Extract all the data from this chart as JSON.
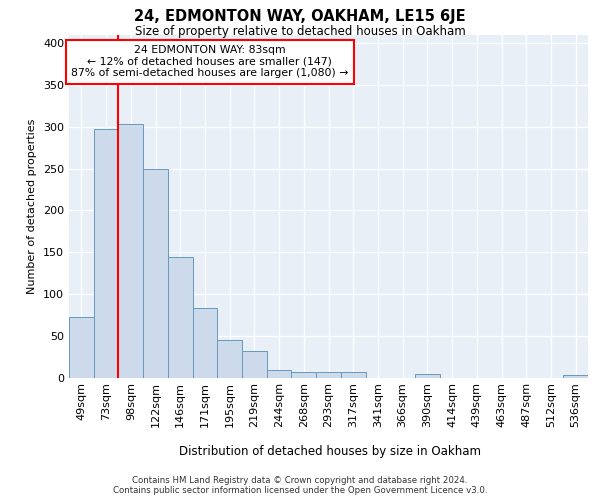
{
  "title": "24, EDMONTON WAY, OAKHAM, LE15 6JE",
  "subtitle": "Size of property relative to detached houses in Oakham",
  "xlabel": "Distribution of detached houses by size in Oakham",
  "ylabel": "Number of detached properties",
  "bar_labels": [
    "49sqm",
    "73sqm",
    "98sqm",
    "122sqm",
    "146sqm",
    "171sqm",
    "195sqm",
    "219sqm",
    "244sqm",
    "268sqm",
    "293sqm",
    "317sqm",
    "341sqm",
    "366sqm",
    "390sqm",
    "414sqm",
    "439sqm",
    "463sqm",
    "487sqm",
    "512sqm",
    "536sqm"
  ],
  "bar_values": [
    72,
    298,
    303,
    249,
    144,
    83,
    45,
    32,
    9,
    6,
    6,
    6,
    0,
    0,
    4,
    0,
    0,
    0,
    0,
    0,
    3
  ],
  "bar_color": "#ccdaeb",
  "bar_edge_color": "#6699bb",
  "red_line_x": 1.5,
  "annotation_text_line1": "24 EDMONTON WAY: 83sqm",
  "annotation_text_line2": "← 12% of detached houses are smaller (147)",
  "annotation_text_line3": "87% of semi-detached houses are larger (1,080) →",
  "ylim": [
    0,
    410
  ],
  "yticks": [
    0,
    50,
    100,
    150,
    200,
    250,
    300,
    350,
    400
  ],
  "plot_bg_color": "#e8eff7",
  "footnote_line1": "Contains HM Land Registry data © Crown copyright and database right 2024.",
  "footnote_line2": "Contains public sector information licensed under the Open Government Licence v3.0."
}
